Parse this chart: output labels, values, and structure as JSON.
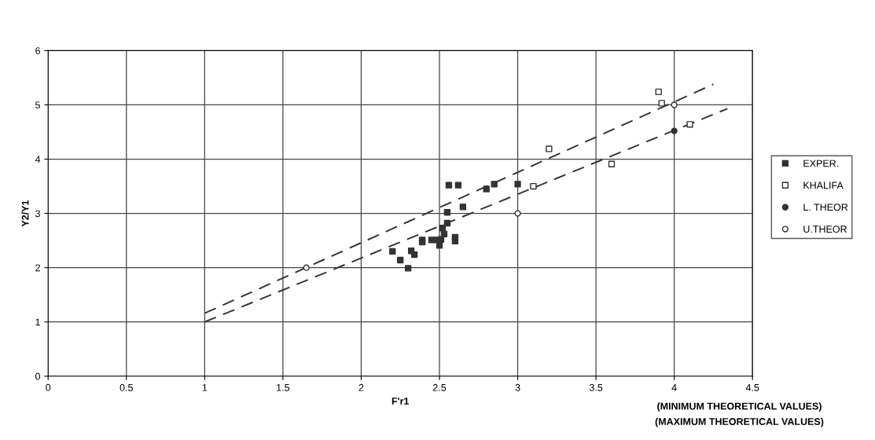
{
  "chart_data": {
    "type": "scatter",
    "xlabel": "F'r1",
    "ylabel": "Y2/Y1",
    "xlim": [
      0,
      4.5
    ],
    "ylim": [
      0,
      6
    ],
    "xticks": [
      0,
      0.5,
      1,
      1.5,
      2,
      2.5,
      3,
      3.5,
      4,
      4.5
    ],
    "yticks": [
      0,
      1,
      2,
      3,
      4,
      5,
      6
    ],
    "grid": true,
    "legend": "right",
    "annotations": [
      "(MINIMUM THEORETICAL VALUES)",
      "(MAXIMUM THEORETICAL VALUES)"
    ],
    "series": [
      {
        "name": "EXPER.",
        "color": "#333333",
        "marker": "square",
        "x": [
          2.56,
          2.62,
          2.8,
          2.85,
          3.0,
          2.65,
          2.55,
          2.55,
          2.52,
          2.53,
          2.39,
          2.39,
          2.45,
          2.48,
          2.51,
          2.5,
          2.6,
          2.6,
          2.2,
          2.32,
          2.34,
          2.25,
          2.3
        ],
        "values": [
          3.52,
          3.52,
          3.45,
          3.54,
          3.54,
          3.12,
          3.02,
          2.82,
          2.73,
          2.62,
          2.51,
          2.47,
          2.51,
          2.51,
          2.52,
          2.41,
          2.56,
          2.49,
          2.3,
          2.31,
          2.24,
          2.14,
          1.99
        ]
      },
      {
        "name": "KHALIFA",
        "color": "#ffffff",
        "marker": "square",
        "x": [
          3.9,
          3.92,
          3.2,
          3.1,
          3.6,
          4.1
        ],
        "values": [
          5.24,
          5.03,
          4.19,
          3.5,
          3.91,
          4.64
        ]
      },
      {
        "name": "L. THEOR",
        "color": "#333333",
        "marker": "circle",
        "x": [
          4
        ],
        "values": [
          4.52
        ]
      },
      {
        "name": "U.THEOR",
        "color": "#ffffff",
        "marker": "circle",
        "x": [
          1.65,
          3,
          4
        ],
        "values": [
          2.0,
          3.0,
          5.0
        ]
      },
      {
        "type": "line",
        "line_style": "dashed",
        "marker": "none",
        "color": "#333333",
        "x": [
          1,
          4.25
        ],
        "values": [
          1.16,
          5.38
        ]
      },
      {
        "type": "line",
        "line_style": "dashed",
        "marker": "none",
        "color": "#333333",
        "x": [
          1,
          4.34
        ],
        "values": [
          1.0,
          4.93
        ]
      }
    ]
  }
}
